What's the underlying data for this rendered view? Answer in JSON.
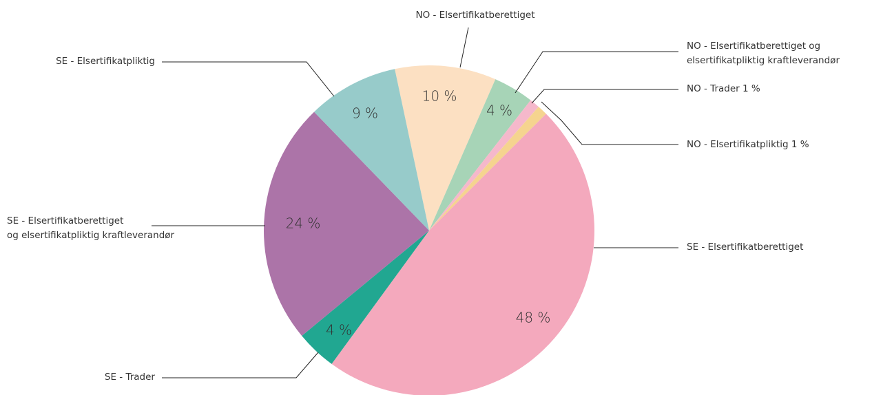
{
  "chart_data": {
    "type": "pie",
    "categories": [
      "NO - Elsertifikatberettiget",
      "NO - Elsertifikatberettiget og\nelsertifikatpliktig kraftleverandør",
      "NO - Trader 1 %",
      "NO - Elsertifikatpliktig 1 %",
      "SE - Elsertifikatberettiget",
      "SE - Trader",
      "SE - Elsertifikatberettiget\nog elsertifikatpliktig kraftleverandør",
      "SE - Elsertifikatpliktig"
    ],
    "values": [
      10,
      4,
      1,
      1,
      48,
      4,
      24,
      9
    ],
    "value_labels": [
      "10 %",
      "4 %",
      null,
      null,
      "48 %",
      "4 %",
      "24 %",
      "9 %"
    ],
    "colors": [
      "#fce0c2",
      "#a7d4b7",
      "#f5b8cb",
      "#f5d48f",
      "#f4a9bd",
      "#21a791",
      "#ac74a8",
      "#97cbca"
    ]
  }
}
